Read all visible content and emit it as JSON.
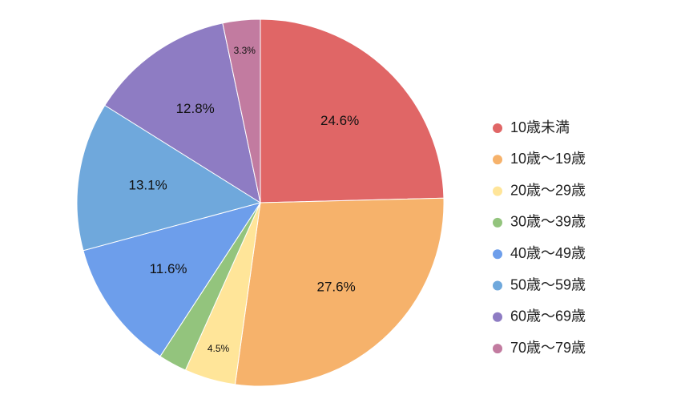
{
  "chart_data": {
    "type": "pie",
    "title": "",
    "start_angle_deg": 0,
    "direction": "clockwise",
    "legend_position": "right",
    "slices": [
      {
        "label": "10歳未満",
        "value": 24.6,
        "display": "24.6%",
        "color": "#e06666"
      },
      {
        "label": "10歳〜19歳",
        "value": 27.6,
        "display": "27.6%",
        "color": "#f6b26b"
      },
      {
        "label": "20歳〜29歳",
        "value": 4.5,
        "display": "4.5%",
        "color": "#ffe599"
      },
      {
        "label": "30歳〜39歳",
        "value": 2.5,
        "display": "",
        "color": "#93c47d"
      },
      {
        "label": "40歳〜49歳",
        "value": 11.6,
        "display": "11.6%",
        "color": "#6d9eeb"
      },
      {
        "label": "50歳〜59歳",
        "value": 13.1,
        "display": "13.1%",
        "color": "#6fa8dc"
      },
      {
        "label": "60歳〜69歳",
        "value": 12.8,
        "display": "12.8%",
        "color": "#8e7cc3"
      },
      {
        "label": "70歳〜79歳",
        "value": 3.3,
        "display": "3.3%",
        "color": "#c27ba0"
      }
    ]
  }
}
